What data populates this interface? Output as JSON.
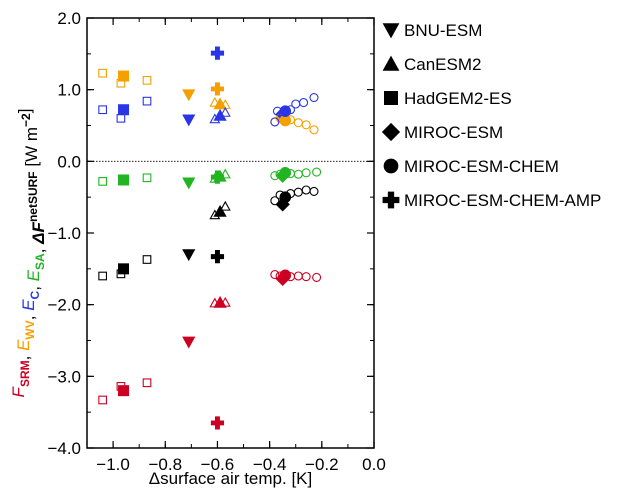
{
  "chart_data": {
    "type": "scatter",
    "title": "",
    "xlabel": "Δsurface air temp. [K]",
    "ylabel_parts": [
      {
        "text": "F",
        "sub": "SRM",
        "color": "#cc0022"
      },
      {
        "text": ", ",
        "sub": "",
        "color": "#000000"
      },
      {
        "text": "E",
        "sub": "WV",
        "color": "#f5a000"
      },
      {
        "text": ", ",
        "sub": "",
        "color": "#000000"
      },
      {
        "text": "E",
        "sub": "C",
        "color": "#2a35e6"
      },
      {
        "text": ", ",
        "sub": "",
        "color": "#000000"
      },
      {
        "text": "E",
        "sub": "SA",
        "color": "#22b522"
      },
      {
        "text": ", ",
        "sub": "",
        "color": "#000000"
      },
      {
        "text": "ΔF",
        "sup": "net",
        "sub": "SURF",
        "color": "#000000"
      },
      {
        "text": " [W m",
        "sup": "−2",
        "sub": "",
        "after": "]",
        "color": "#000000"
      }
    ],
    "xlim": [
      -1.1,
      0.0
    ],
    "ylim": [
      -4.0,
      2.0
    ],
    "xticks": [
      -1.0,
      -0.8,
      -0.6,
      -0.4,
      -0.2,
      0.0
    ],
    "xtick_labels": [
      "−1.0",
      "−0.8",
      "−0.6",
      "−0.4",
      "−0.2",
      "0.0"
    ],
    "yticks": [
      -4.0,
      -3.0,
      -2.0,
      -1.0,
      0.0,
      1.0,
      2.0
    ],
    "ytick_labels": [
      "−4.0",
      "−3.0",
      "−2.0",
      "−1.0",
      "0.0",
      "1.0",
      "2.0"
    ],
    "zero_line": true,
    "legend_position": "right",
    "colors": {
      "F_SRM": "#cc0022",
      "E_WV": "#f5a000",
      "E_C": "#2a35e6",
      "E_SA": "#22b522",
      "dF_net_SURF": "#000000"
    },
    "legend": [
      {
        "label": "BNU-ESM",
        "marker": "triangle-down"
      },
      {
        "label": "CanESM2",
        "marker": "triangle-up"
      },
      {
        "label": "HadGEM2-ES",
        "marker": "square"
      },
      {
        "label": "MIROC-ESM",
        "marker": "diamond"
      },
      {
        "label": "MIROC-ESM-CHEM",
        "marker": "circle"
      },
      {
        "label": "MIROC-ESM-CHEM-AMP",
        "marker": "cross"
      }
    ],
    "points": [
      {
        "x": -1.04,
        "y": 1.23,
        "marker": "square",
        "filled": false,
        "quantity": "E_WV"
      },
      {
        "x": -0.96,
        "y": 1.19,
        "marker": "square",
        "filled": true,
        "quantity": "E_WV"
      },
      {
        "x": -0.97,
        "y": 1.09,
        "marker": "square",
        "filled": false,
        "quantity": "E_WV"
      },
      {
        "x": -0.87,
        "y": 1.13,
        "marker": "square",
        "filled": false,
        "quantity": "E_WV"
      },
      {
        "x": -1.04,
        "y": 0.72,
        "marker": "square",
        "filled": false,
        "quantity": "E_C"
      },
      {
        "x": -0.96,
        "y": 0.72,
        "marker": "square",
        "filled": true,
        "quantity": "E_C"
      },
      {
        "x": -0.97,
        "y": 0.6,
        "marker": "square",
        "filled": false,
        "quantity": "E_C"
      },
      {
        "x": -0.87,
        "y": 0.84,
        "marker": "square",
        "filled": false,
        "quantity": "E_C"
      },
      {
        "x": -1.04,
        "y": -0.28,
        "marker": "square",
        "filled": false,
        "quantity": "E_SA"
      },
      {
        "x": -0.96,
        "y": -0.26,
        "marker": "square",
        "filled": true,
        "quantity": "E_SA"
      },
      {
        "x": -0.87,
        "y": -0.23,
        "marker": "square",
        "filled": false,
        "quantity": "E_SA"
      },
      {
        "x": -1.04,
        "y": -1.6,
        "marker": "square",
        "filled": false,
        "quantity": "dF_net_SURF"
      },
      {
        "x": -0.96,
        "y": -1.5,
        "marker": "square",
        "filled": true,
        "quantity": "dF_net_SURF"
      },
      {
        "x": -0.97,
        "y": -1.57,
        "marker": "square",
        "filled": false,
        "quantity": "dF_net_SURF"
      },
      {
        "x": -0.87,
        "y": -1.37,
        "marker": "square",
        "filled": false,
        "quantity": "dF_net_SURF"
      },
      {
        "x": -1.04,
        "y": -3.33,
        "marker": "square",
        "filled": false,
        "quantity": "F_SRM"
      },
      {
        "x": -0.96,
        "y": -3.2,
        "marker": "square",
        "filled": true,
        "quantity": "F_SRM"
      },
      {
        "x": -0.97,
        "y": -3.14,
        "marker": "square",
        "filled": false,
        "quantity": "F_SRM"
      },
      {
        "x": -0.87,
        "y": -3.09,
        "marker": "square",
        "filled": false,
        "quantity": "F_SRM"
      },
      {
        "x": -0.71,
        "y": 0.93,
        "marker": "triangle-down",
        "filled": true,
        "quantity": "E_WV"
      },
      {
        "x": -0.71,
        "y": 0.58,
        "marker": "triangle-down",
        "filled": true,
        "quantity": "E_C"
      },
      {
        "x": -0.71,
        "y": -0.3,
        "marker": "triangle-down",
        "filled": true,
        "quantity": "E_SA"
      },
      {
        "x": -0.71,
        "y": -1.3,
        "marker": "triangle-down",
        "filled": true,
        "quantity": "dF_net_SURF"
      },
      {
        "x": -0.71,
        "y": -2.52,
        "marker": "triangle-down",
        "filled": true,
        "quantity": "F_SRM"
      },
      {
        "x": -0.6,
        "y": 1.51,
        "marker": "cross",
        "filled": true,
        "quantity": "E_C"
      },
      {
        "x": -0.6,
        "y": 1.01,
        "marker": "cross",
        "filled": true,
        "quantity": "E_WV"
      },
      {
        "x": -0.6,
        "y": -0.22,
        "marker": "cross",
        "filled": true,
        "quantity": "E_SA"
      },
      {
        "x": -0.6,
        "y": -1.33,
        "marker": "cross",
        "filled": true,
        "quantity": "dF_net_SURF"
      },
      {
        "x": -0.6,
        "y": -3.65,
        "marker": "cross",
        "filled": true,
        "quantity": "F_SRM"
      },
      {
        "x": -0.61,
        "y": 0.82,
        "marker": "triangle-up",
        "filled": false,
        "quantity": "E_WV"
      },
      {
        "x": -0.59,
        "y": 0.8,
        "marker": "triangle-up",
        "filled": true,
        "quantity": "E_WV"
      },
      {
        "x": -0.57,
        "y": 0.79,
        "marker": "triangle-up",
        "filled": false,
        "quantity": "E_WV"
      },
      {
        "x": -0.61,
        "y": 0.59,
        "marker": "triangle-up",
        "filled": false,
        "quantity": "E_C"
      },
      {
        "x": -0.59,
        "y": 0.64,
        "marker": "triangle-up",
        "filled": true,
        "quantity": "E_C"
      },
      {
        "x": -0.57,
        "y": 0.68,
        "marker": "triangle-up",
        "filled": false,
        "quantity": "E_C"
      },
      {
        "x": -0.61,
        "y": -0.24,
        "marker": "triangle-up",
        "filled": false,
        "quantity": "E_SA"
      },
      {
        "x": -0.59,
        "y": -0.21,
        "marker": "triangle-up",
        "filled": true,
        "quantity": "E_SA"
      },
      {
        "x": -0.57,
        "y": -0.18,
        "marker": "triangle-up",
        "filled": false,
        "quantity": "E_SA"
      },
      {
        "x": -0.61,
        "y": -0.75,
        "marker": "triangle-up",
        "filled": false,
        "quantity": "dF_net_SURF"
      },
      {
        "x": -0.59,
        "y": -0.7,
        "marker": "triangle-up",
        "filled": true,
        "quantity": "dF_net_SURF"
      },
      {
        "x": -0.57,
        "y": -0.63,
        "marker": "triangle-up",
        "filled": false,
        "quantity": "dF_net_SURF"
      },
      {
        "x": -0.61,
        "y": -1.98,
        "marker": "triangle-up",
        "filled": false,
        "quantity": "F_SRM"
      },
      {
        "x": -0.59,
        "y": -1.97,
        "marker": "triangle-up",
        "filled": true,
        "quantity": "F_SRM"
      },
      {
        "x": -0.57,
        "y": -1.97,
        "marker": "triangle-up",
        "filled": false,
        "quantity": "F_SRM"
      },
      {
        "x": -0.35,
        "y": 0.6,
        "marker": "diamond",
        "filled": true,
        "quantity": "E_WV"
      },
      {
        "x": -0.35,
        "y": 0.66,
        "marker": "diamond",
        "filled": true,
        "quantity": "E_C"
      },
      {
        "x": -0.35,
        "y": -0.2,
        "marker": "diamond",
        "filled": true,
        "quantity": "E_SA"
      },
      {
        "x": -0.35,
        "y": -0.6,
        "marker": "diamond",
        "filled": true,
        "quantity": "dF_net_SURF"
      },
      {
        "x": -0.35,
        "y": -1.64,
        "marker": "diamond",
        "filled": true,
        "quantity": "F_SRM"
      },
      {
        "x": -0.38,
        "y": 0.55,
        "marker": "circle",
        "filled": false,
        "quantity": "E_WV"
      },
      {
        "x": -0.36,
        "y": 0.6,
        "marker": "circle",
        "filled": false,
        "quantity": "E_WV"
      },
      {
        "x": -0.34,
        "y": 0.57,
        "marker": "circle",
        "filled": true,
        "quantity": "E_WV"
      },
      {
        "x": -0.32,
        "y": 0.58,
        "marker": "circle",
        "filled": false,
        "quantity": "E_WV"
      },
      {
        "x": -0.29,
        "y": 0.54,
        "marker": "circle",
        "filled": false,
        "quantity": "E_WV"
      },
      {
        "x": -0.26,
        "y": 0.51,
        "marker": "circle",
        "filled": false,
        "quantity": "E_WV"
      },
      {
        "x": -0.23,
        "y": 0.44,
        "marker": "circle",
        "filled": false,
        "quantity": "E_WV"
      },
      {
        "x": -0.38,
        "y": 0.55,
        "marker": "circle",
        "filled": false,
        "quantity": "E_C"
      },
      {
        "x": -0.37,
        "y": 0.7,
        "marker": "circle",
        "filled": false,
        "quantity": "E_C"
      },
      {
        "x": -0.34,
        "y": 0.7,
        "marker": "circle",
        "filled": true,
        "quantity": "E_C"
      },
      {
        "x": -0.32,
        "y": 0.72,
        "marker": "circle",
        "filled": false,
        "quantity": "E_C"
      },
      {
        "x": -0.3,
        "y": 0.8,
        "marker": "circle",
        "filled": false,
        "quantity": "E_C"
      },
      {
        "x": -0.27,
        "y": 0.82,
        "marker": "circle",
        "filled": false,
        "quantity": "E_C"
      },
      {
        "x": -0.23,
        "y": 0.89,
        "marker": "circle",
        "filled": false,
        "quantity": "E_C"
      },
      {
        "x": -0.38,
        "y": -0.2,
        "marker": "circle",
        "filled": false,
        "quantity": "E_SA"
      },
      {
        "x": -0.36,
        "y": -0.18,
        "marker": "circle",
        "filled": false,
        "quantity": "E_SA"
      },
      {
        "x": -0.34,
        "y": -0.16,
        "marker": "circle",
        "filled": true,
        "quantity": "E_SA"
      },
      {
        "x": -0.32,
        "y": -0.17,
        "marker": "circle",
        "filled": false,
        "quantity": "E_SA"
      },
      {
        "x": -0.29,
        "y": -0.18,
        "marker": "circle",
        "filled": false,
        "quantity": "E_SA"
      },
      {
        "x": -0.26,
        "y": -0.16,
        "marker": "circle",
        "filled": false,
        "quantity": "E_SA"
      },
      {
        "x": -0.22,
        "y": -0.15,
        "marker": "circle",
        "filled": false,
        "quantity": "E_SA"
      },
      {
        "x": -0.38,
        "y": -0.55,
        "marker": "circle",
        "filled": false,
        "quantity": "dF_net_SURF"
      },
      {
        "x": -0.36,
        "y": -0.47,
        "marker": "circle",
        "filled": false,
        "quantity": "dF_net_SURF"
      },
      {
        "x": -0.34,
        "y": -0.5,
        "marker": "circle",
        "filled": true,
        "quantity": "dF_net_SURF"
      },
      {
        "x": -0.32,
        "y": -0.45,
        "marker": "circle",
        "filled": false,
        "quantity": "dF_net_SURF"
      },
      {
        "x": -0.29,
        "y": -0.43,
        "marker": "circle",
        "filled": false,
        "quantity": "dF_net_SURF"
      },
      {
        "x": -0.26,
        "y": -0.4,
        "marker": "circle",
        "filled": false,
        "quantity": "dF_net_SURF"
      },
      {
        "x": -0.23,
        "y": -0.42,
        "marker": "circle",
        "filled": false,
        "quantity": "dF_net_SURF"
      },
      {
        "x": -0.38,
        "y": -1.58,
        "marker": "circle",
        "filled": false,
        "quantity": "F_SRM"
      },
      {
        "x": -0.36,
        "y": -1.6,
        "marker": "circle",
        "filled": false,
        "quantity": "F_SRM"
      },
      {
        "x": -0.34,
        "y": -1.59,
        "marker": "circle",
        "filled": true,
        "quantity": "F_SRM"
      },
      {
        "x": -0.32,
        "y": -1.61,
        "marker": "circle",
        "filled": false,
        "quantity": "F_SRM"
      },
      {
        "x": -0.29,
        "y": -1.6,
        "marker": "circle",
        "filled": false,
        "quantity": "F_SRM"
      },
      {
        "x": -0.26,
        "y": -1.61,
        "marker": "circle",
        "filled": false,
        "quantity": "F_SRM"
      },
      {
        "x": -0.22,
        "y": -1.62,
        "marker": "circle",
        "filled": false,
        "quantity": "F_SRM"
      }
    ]
  }
}
